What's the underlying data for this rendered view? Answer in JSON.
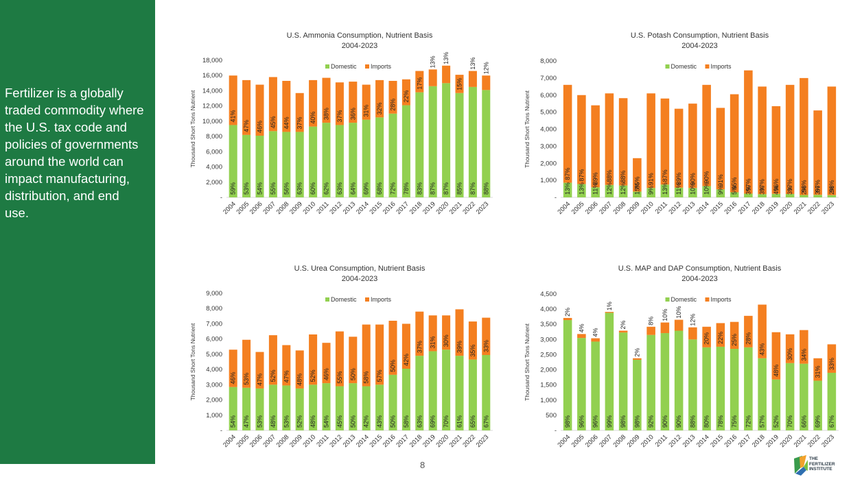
{
  "side_panel": {
    "text": "Fertilizer is a globally traded commodity where the U.S. tax code and policies of governments around the world can impact manufacturing, distribution, and end use."
  },
  "footer": {
    "page_number": "8"
  },
  "logo": {
    "line1": "THE",
    "line2": "FERTILIZER",
    "line3": "INSTITUTE"
  },
  "colors": {
    "panel": "#1e7a43",
    "domestic": "#92d050",
    "imports": "#f47f20"
  },
  "chart_data": [
    {
      "type": "bar",
      "title": "U.S. Ammonia Consumption, Nutrient Basis",
      "subtitle": "2004-2023",
      "ylabel": "Thousand Short Tons Nutrient",
      "ylim": [
        0,
        18000
      ],
      "yticks": [
        "-",
        "2,000",
        "4,000",
        "6,000",
        "8,000",
        "10,000",
        "12,000",
        "14,000",
        "16,000",
        "18,000"
      ],
      "legend": "top-center",
      "categories": [
        "2004",
        "2005",
        "2006",
        "2007",
        "2008",
        "2009",
        "2010",
        "2011",
        "2012",
        "2013",
        "2014",
        "2015",
        "2016",
        "2017",
        "2018",
        "2019",
        "2020",
        "2021",
        "2022",
        "2023"
      ],
      "series": [
        {
          "name": "Domestic",
          "values": [
            9500,
            8200,
            8100,
            8700,
            8600,
            8600,
            9300,
            9800,
            9500,
            9800,
            10200,
            10500,
            11000,
            12100,
            13800,
            14600,
            15000,
            13700,
            14500,
            14100
          ],
          "labels": [
            "59%",
            "53%",
            "54%",
            "55%",
            "56%",
            "63%",
            "60%",
            "62%",
            "63%",
            "64%",
            "69%",
            "68%",
            "72%",
            "78%",
            "83%",
            "87%",
            "87%",
            "85%",
            "87%",
            "88%"
          ]
        },
        {
          "name": "Imports",
          "values": [
            6500,
            7200,
            6700,
            7100,
            6700,
            5100,
            6100,
            5900,
            5600,
            5400,
            4600,
            4900,
            4300,
            3400,
            2800,
            2200,
            2300,
            2400,
            2100,
            1900
          ],
          "labels": [
            "41%",
            "47%",
            "46%",
            "45%",
            "44%",
            "37%",
            "40%",
            "38%",
            "37%",
            "36%",
            "31%",
            "32%",
            "28%",
            "22%",
            "17%",
            "13%",
            "13%",
            "15%",
            "13%",
            "12%"
          ]
        }
      ]
    },
    {
      "type": "bar",
      "title": "U.S. Potash Consumption, Nutrient Basis",
      "subtitle": "2004-2023",
      "ylabel": "Thousand Short Tons Nutrient",
      "ylim": [
        0,
        8000
      ],
      "yticks": [
        "-",
        "1,000",
        "2,000",
        "3,000",
        "4,000",
        "5,000",
        "6,000",
        "7,000",
        "8,000"
      ],
      "legend": "top-center",
      "categories": [
        "2004",
        "2005",
        "2006",
        "2007",
        "2008",
        "2009",
        "2010",
        "2011",
        "2012",
        "2013",
        "2014",
        "2015",
        "2016",
        "2017",
        "2018",
        "2019",
        "2020",
        "2021",
        "2022",
        "2023"
      ],
      "series": [
        {
          "name": "Domestic",
          "values": [
            860,
            780,
            590,
            730,
            700,
            340,
            550,
            750,
            570,
            550,
            660,
            470,
            300,
            220,
            190,
            210,
            200,
            140,
            150,
            130
          ],
          "labels": [
            "13%",
            "13%",
            "11%",
            "12%",
            "12%",
            "15%",
            "9%",
            "13%",
            "11%",
            "10%",
            "10%",
            "9%",
            "5%",
            "3%",
            "3%",
            "4%",
            "3%",
            "2%",
            "3%",
            "2%"
          ]
        },
        {
          "name": "Imports",
          "values": [
            5740,
            5220,
            4810,
            5370,
            5120,
            1960,
            5550,
            5050,
            4630,
            4950,
            5940,
            4780,
            5750,
            7230,
            6310,
            5140,
            6400,
            6860,
            4950,
            6370
          ],
          "labels": [
            "87%",
            "87%",
            "89%",
            "88%",
            "88%",
            "85%",
            "91%",
            "87%",
            "89%",
            "90%",
            "90%",
            "91%",
            "95%",
            "97%",
            "97%",
            "96%",
            "97%",
            "98%",
            "97%",
            "98%"
          ]
        }
      ]
    },
    {
      "type": "bar",
      "title": "U.S. Urea Consumption, Nutrient Basis",
      "subtitle": "2004-2023",
      "ylabel": "Thousand Short Tons Nutrient",
      "ylim": [
        0,
        9000
      ],
      "yticks": [
        "-",
        "1,000",
        "2,000",
        "3,000",
        "4,000",
        "5,000",
        "6,000",
        "7,000",
        "8,000",
        "9,000"
      ],
      "legend": "top-center",
      "categories": [
        "2004",
        "2005",
        "2006",
        "2007",
        "2008",
        "2009",
        "2010",
        "2011",
        "2012",
        "2013",
        "2014",
        "2015",
        "2016",
        "2017",
        "2018",
        "2019",
        "2020",
        "2021",
        "2022",
        "2023"
      ],
      "series": [
        {
          "name": "Domestic",
          "values": [
            2850,
            2800,
            2750,
            3000,
            2950,
            2750,
            3000,
            3100,
            2900,
            3100,
            2900,
            3000,
            3650,
            4050,
            4900,
            5200,
            5300,
            4900,
            4650,
            4950
          ],
          "labels": [
            "54%",
            "47%",
            "53%",
            "48%",
            "53%",
            "52%",
            "48%",
            "54%",
            "45%",
            "50%",
            "42%",
            "43%",
            "50%",
            "58%",
            "63%",
            "69%",
            "70%",
            "61%",
            "65%",
            "67%"
          ]
        },
        {
          "name": "Imports",
          "values": [
            2450,
            3150,
            2400,
            3250,
            2650,
            2500,
            3300,
            2650,
            3600,
            3050,
            4050,
            3950,
            3550,
            2950,
            2900,
            2350,
            2250,
            3050,
            2500,
            2450
          ],
          "labels": [
            "46%",
            "53%",
            "47%",
            "52%",
            "47%",
            "48%",
            "52%",
            "46%",
            "55%",
            "50%",
            "58%",
            "57%",
            "50%",
            "42%",
            "37%",
            "31%",
            "30%",
            "39%",
            "35%",
            "33%"
          ]
        }
      ]
    },
    {
      "type": "bar",
      "title": "U.S. MAP and DAP Consumption, Nutrient Basis",
      "subtitle": "2004-2023",
      "ylabel": "Thousand Short Tons Nutrient",
      "ylim": [
        0,
        4500
      ],
      "yticks": [
        "-",
        "500",
        "1,000",
        "1,500",
        "2,000",
        "2,500",
        "3,000",
        "3,500",
        "4,000",
        "4,500"
      ],
      "legend": "top-center",
      "categories": [
        "2004",
        "2005",
        "2006",
        "2007",
        "2008",
        "2009",
        "2010",
        "2011",
        "2012",
        "2013",
        "2014",
        "2015",
        "2016",
        "2017",
        "2018",
        "2019",
        "2020",
        "2021",
        "2022",
        "2023"
      ],
      "series": [
        {
          "name": "Domestic",
          "values": [
            3640,
            3050,
            2930,
            3880,
            3230,
            2330,
            3150,
            3210,
            3290,
            3000,
            2740,
            2760,
            2690,
            2740,
            2380,
            1680,
            2220,
            2200,
            1640,
            1900
          ],
          "labels": [
            "98%",
            "96%",
            "96%",
            "99%",
            "98%",
            "98%",
            "92%",
            "90%",
            "90%",
            "88%",
            "80%",
            "78%",
            "75%",
            "72%",
            "57%",
            "52%",
            "70%",
            "66%",
            "69%",
            "67%"
          ]
        },
        {
          "name": "Imports",
          "values": [
            70,
            130,
            110,
            30,
            60,
            50,
            270,
            350,
            360,
            400,
            680,
            780,
            890,
            1040,
            1770,
            1560,
            950,
            1110,
            740,
            940
          ],
          "labels": [
            "2%",
            "4%",
            "4%",
            "1%",
            "2%",
            "2%",
            "8%",
            "10%",
            "10%",
            "12%",
            "20%",
            "22%",
            "25%",
            "28%",
            "43%",
            "48%",
            "30%",
            "34%",
            "31%",
            "33%"
          ]
        }
      ]
    }
  ]
}
